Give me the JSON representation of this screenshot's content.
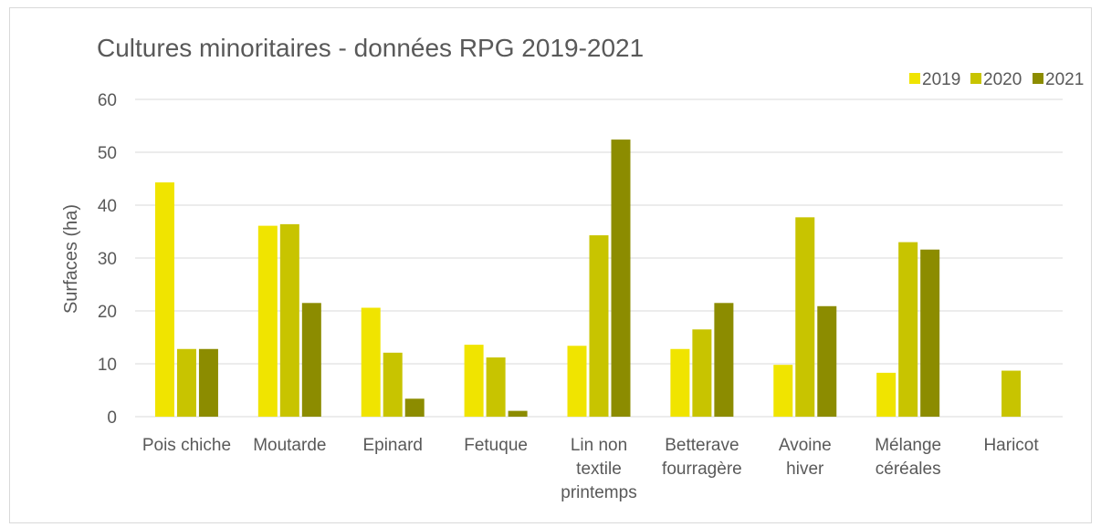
{
  "chart_data": {
    "type": "bar",
    "title": "Cultures minoritaires - données RPG 2019-2021",
    "xlabel": "",
    "ylabel": "Surfaces (ha)",
    "ylim": [
      0,
      60
    ],
    "yticks": [
      0,
      10,
      20,
      30,
      40,
      50,
      60
    ],
    "grid": true,
    "legend_position": "top-right",
    "categories": [
      [
        "Pois chiche"
      ],
      [
        "Moutarde"
      ],
      [
        "Epinard"
      ],
      [
        "Fetuque"
      ],
      [
        "Lin non",
        "textile",
        "printemps"
      ],
      [
        "Betterave",
        "fourragère"
      ],
      [
        "Avoine",
        "hiver"
      ],
      [
        "Mélange",
        "céréales"
      ],
      [
        "Haricot"
      ]
    ],
    "series": [
      {
        "name": "2019",
        "color": "#f0e400",
        "values": [
          44.3,
          36.1,
          20.6,
          13.6,
          13.4,
          12.8,
          9.8,
          8.3,
          null
        ]
      },
      {
        "name": "2020",
        "color": "#c8c400",
        "values": [
          12.8,
          36.4,
          12.1,
          11.2,
          34.3,
          16.5,
          37.7,
          33.0,
          8.7
        ]
      },
      {
        "name": "2021",
        "color": "#8c8c00",
        "values": [
          12.8,
          21.5,
          3.4,
          1.1,
          52.4,
          21.5,
          20.9,
          31.6,
          null
        ]
      }
    ]
  }
}
